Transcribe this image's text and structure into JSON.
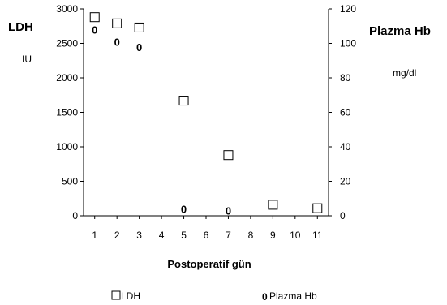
{
  "chart_data": {
    "type": "scatter",
    "left_title": "LDH",
    "left_unit": "IU",
    "right_title": "Plazma Hb",
    "right_unit": "mg/dl",
    "xlabel": "Postoperatif gün",
    "x_ticks": [
      "1",
      "2",
      "3",
      "4",
      "5",
      "6",
      "7",
      "8",
      "9",
      "10",
      "11"
    ],
    "y_left_ticks": [
      "0",
      "500",
      "1000",
      "1500",
      "2000",
      "2500",
      "3000"
    ],
    "y_right_ticks": [
      "0",
      "20",
      "40",
      "60",
      "80",
      "100",
      "120"
    ],
    "ylim_left": [
      0,
      3000
    ],
    "ylim_right": [
      0,
      120
    ],
    "xlim": [
      0.5,
      11.5
    ],
    "grid": false,
    "legend_position": "bottom",
    "series": [
      {
        "name": "LDH",
        "axis": "left",
        "marker": "square",
        "points": [
          {
            "x": 1,
            "y": 2880
          },
          {
            "x": 2,
            "y": 2790
          },
          {
            "x": 3,
            "y": 2730
          },
          {
            "x": 5,
            "y": 1670
          },
          {
            "x": 7,
            "y": 880
          },
          {
            "x": 9,
            "y": 160
          },
          {
            "x": 11,
            "y": 110
          }
        ]
      },
      {
        "name": "Plazma Hb",
        "axis": "right",
        "marker": "0",
        "points": [
          {
            "x": 1,
            "y": 108
          },
          {
            "x": 2,
            "y": 101
          },
          {
            "x": 3,
            "y": 98
          },
          {
            "x": 5,
            "y": 4
          },
          {
            "x": 7,
            "y": 3
          }
        ]
      }
    ]
  }
}
